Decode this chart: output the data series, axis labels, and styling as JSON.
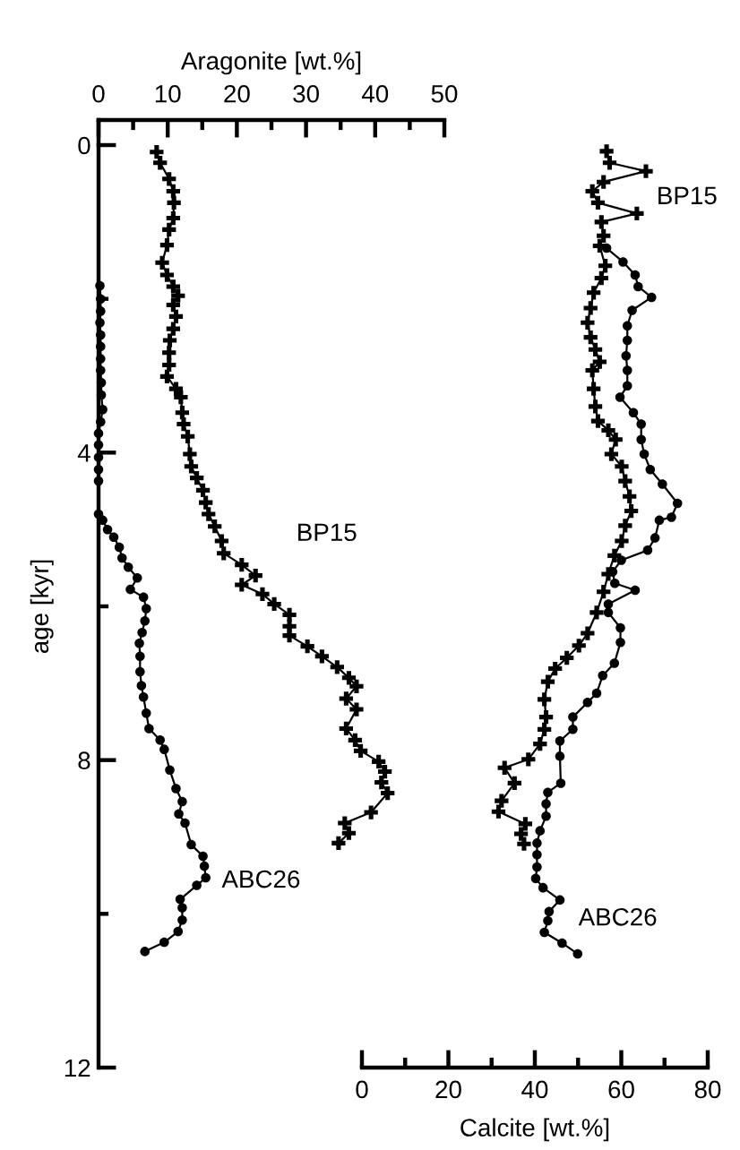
{
  "chart_data": [
    {
      "type": "line",
      "xlabel": "Aragonite [wt.%]",
      "ylabel": "age [kyr]",
      "xlim": [
        0,
        50
      ],
      "xticks": [
        0,
        {
          "value": 5,
          "label": null
        },
        10,
        {
          "value": 15,
          "label": null
        },
        20,
        {
          "value": 25,
          "label": null
        },
        30,
        {
          "value": 35,
          "label": null
        },
        40,
        {
          "value": 45,
          "label": null
        },
        50
      ],
      "ylim": [
        12,
        0
      ],
      "yticks": [
        0,
        {
          "value": 2,
          "label": null
        },
        4,
        {
          "value": 6,
          "label": null
        },
        8,
        {
          "value": 10,
          "label": null
        },
        12
      ],
      "line_style": "solid",
      "series": [
        {
          "name": "BP15",
          "color": "#000000",
          "marker": "cross",
          "values": [
            0.09,
            0.23,
            0.44,
            0.6,
            0.75,
            0.95,
            1.1,
            1.3,
            1.53,
            1.69,
            1.84,
            1.96,
            2.08,
            2.23,
            2.39,
            2.54,
            2.7,
            2.86,
            3.01,
            3.17,
            3.28,
            3.48,
            3.63,
            3.79,
            4.02,
            4.18,
            4.33,
            4.49,
            4.65,
            4.8,
            4.96,
            5.15,
            5.31,
            5.46,
            5.6,
            5.72,
            5.84,
            5.97,
            6.11,
            6.26,
            6.38,
            6.52,
            6.65,
            6.79,
            6.93,
            7.04,
            7.2,
            7.34,
            7.59,
            7.74,
            7.88,
            8.02,
            8.15,
            8.29,
            8.43,
            8.68,
            8.82,
            8.95,
            9.08
          ],
          "x": [
            8.4,
            8.9,
            10.2,
            10.8,
            10.9,
            10.8,
            10.2,
            9.9,
            9.2,
            9.9,
            10.8,
            11.5,
            10.8,
            11.2,
            10.8,
            10.3,
            10.2,
            10.2,
            9.9,
            11.2,
            11.9,
            12.1,
            12.3,
            12.9,
            13.2,
            13.4,
            14.2,
            15.1,
            15.5,
            15.9,
            16.8,
            17.8,
            18.1,
            20.7,
            22.7,
            20.7,
            23.7,
            25.4,
            27.6,
            27.6,
            27.6,
            30.2,
            32.3,
            34.5,
            36.2,
            37.3,
            35.8,
            37.3,
            35.8,
            37.1,
            37.9,
            40.5,
            41.4,
            40.9,
            41.8,
            39.4,
            35.6,
            36.2,
            34.7
          ]
        },
        {
          "name": "ABC26",
          "color": "#000000",
          "marker": "circle",
          "values": [
            1.83,
            2.0,
            2.16,
            2.31,
            2.47,
            2.62,
            2.78,
            2.93,
            3.09,
            3.25,
            3.44,
            3.6,
            3.75,
            3.9,
            4.06,
            4.22,
            4.37,
            4.8,
            4.88,
            5.0,
            5.1,
            5.23,
            5.37,
            5.49,
            5.63,
            5.78,
            5.88,
            6.03,
            6.19,
            6.34,
            6.48,
            6.65,
            6.85,
            7.03,
            7.18,
            7.39,
            7.59,
            7.74,
            7.86,
            8.13,
            8.37,
            8.54,
            8.7,
            8.82,
            9.1,
            9.25,
            9.38,
            9.53,
            9.63,
            9.81,
            9.92,
            10.08,
            10.23,
            10.37,
            10.49
          ],
          "x": [
            0.2,
            0.3,
            0.3,
            0.2,
            0.3,
            0.3,
            0.3,
            0.3,
            0.4,
            0.4,
            0.6,
            0.3,
            0,
            0,
            0,
            0,
            0,
            0,
            0.6,
            1.3,
            2.2,
            3.0,
            3.4,
            4.3,
            5.6,
            4.6,
            6.5,
            6.9,
            6.7,
            6.3,
            5.9,
            6.0,
            6.0,
            6.2,
            6.5,
            6.9,
            7.3,
            8.9,
            9.5,
            10.3,
            11.2,
            12.1,
            11.6,
            12.5,
            13.4,
            15.1,
            15.3,
            15.5,
            14.2,
            11.8,
            12.1,
            12.1,
            11.5,
            9.5,
            6.7
          ]
        }
      ]
    },
    {
      "type": "line",
      "xlabel": "Calcite [wt.%]",
      "xlim": [
        0,
        80
      ],
      "xticks": [
        0,
        {
          "value": 10,
          "label": null
        },
        20,
        {
          "value": 30,
          "label": null
        },
        40,
        {
          "value": 50,
          "label": null
        },
        60,
        {
          "value": 70,
          "label": null
        },
        80
      ],
      "ylim": [
        12,
        0
      ],
      "tick_labels": "x",
      "line_style": "solid",
      "series": [
        {
          "name": "BP15",
          "color": "#000000",
          "marker": "cross",
          "values": [
            0.08,
            0.23,
            0.34,
            0.48,
            0.6,
            0.75,
            0.89,
            1.0,
            1.18,
            1.31,
            1.57,
            1.73,
            1.92,
            2.12,
            2.31,
            2.5,
            2.66,
            2.82,
            2.93,
            3.17,
            3.4,
            3.59,
            3.71,
            3.83,
            4.02,
            4.18,
            4.37,
            4.57,
            4.76,
            4.95,
            5.15,
            5.34,
            5.58,
            5.81,
            6.08,
            6.35,
            6.51,
            6.67,
            6.81,
            6.98,
            7.21,
            7.44,
            7.6,
            7.79,
            7.99,
            8.1,
            8.3,
            8.53,
            8.67,
            8.83,
            8.96,
            9.09
          ],
          "x": [
            56.6,
            57.3,
            65.7,
            55.9,
            53.3,
            54.6,
            63.6,
            55.4,
            55.9,
            55.0,
            56.3,
            55.4,
            53.6,
            52.9,
            52.2,
            52.9,
            54.0,
            55.0,
            53.3,
            53.6,
            54.0,
            54.6,
            57.0,
            58.7,
            57.7,
            60.1,
            60.9,
            61.9,
            62.3,
            60.9,
            60.1,
            58.4,
            57.0,
            55.9,
            54.3,
            52.2,
            50.2,
            47.4,
            44.7,
            43.0,
            42.2,
            42.6,
            42.2,
            41.2,
            38.5,
            33.0,
            35.3,
            32.3,
            31.6,
            37.8,
            36.8,
            37.5
          ]
        },
        {
          "name": "ABC26",
          "color": "#000000",
          "marker": "circle",
          "values": [
            1.34,
            1.52,
            1.69,
            1.84,
            1.98,
            2.15,
            2.35,
            2.54,
            2.74,
            2.93,
            3.13,
            3.28,
            3.48,
            3.63,
            3.83,
            4.02,
            4.22,
            4.41,
            4.66,
            4.84,
            4.88,
            5.11,
            5.27,
            5.4,
            5.55,
            5.7,
            5.79,
            5.97,
            6.08,
            6.28,
            6.47,
            6.74,
            6.9,
            7.13,
            7.25,
            7.44,
            7.6,
            7.75,
            7.95,
            8.3,
            8.42,
            8.57,
            8.73,
            8.92,
            9.08,
            9.23,
            9.39,
            9.54,
            9.66,
            9.82,
            9.97,
            10.09,
            10.24,
            10.38,
            10.52
          ],
          "x": [
            56.6,
            60.4,
            63.2,
            63.9,
            67.0,
            62.5,
            61.4,
            61.4,
            61.1,
            61.4,
            61.4,
            59.7,
            62.8,
            64.6,
            64.6,
            65.3,
            66.7,
            69.5,
            73.0,
            71.6,
            68.8,
            67.8,
            66.1,
            60.0,
            58.0,
            58.5,
            63.2,
            57.0,
            57.0,
            59.8,
            59.8,
            58.4,
            55.7,
            54.3,
            52.2,
            48.8,
            48.8,
            45.8,
            45.8,
            46.0,
            43.0,
            42.6,
            42.6,
            41.2,
            40.5,
            40.5,
            40.5,
            40.2,
            41.9,
            45.8,
            43.3,
            43.0,
            42.2,
            46.3,
            49.9
          ]
        }
      ]
    }
  ]
}
